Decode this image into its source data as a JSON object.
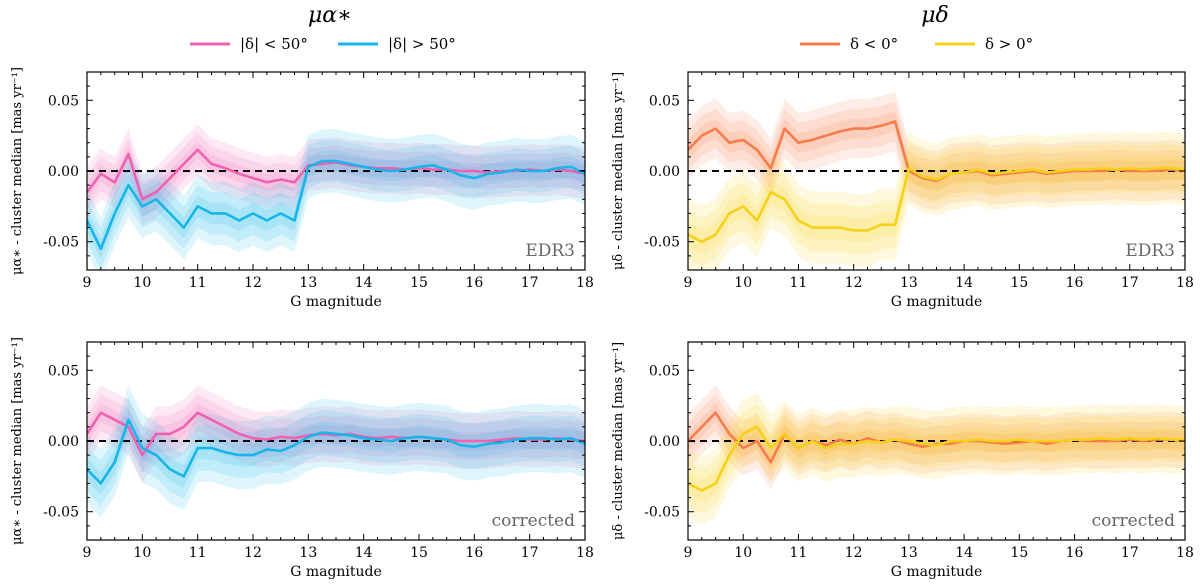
{
  "headers": [
    {
      "title": "μα∗",
      "legend": [
        {
          "label": "|δ| < 50°",
          "color": "#f062b0"
        },
        {
          "label": "|δ| > 50°",
          "color": "#17b5ea"
        }
      ]
    },
    {
      "title": "μδ",
      "legend": [
        {
          "label": "δ < 0°",
          "color": "#f57d4c"
        },
        {
          "label": "δ > 0°",
          "color": "#f7d117"
        }
      ]
    }
  ],
  "chart_data": [
    {
      "type": "line",
      "id": "ra-edr3",
      "tag": "EDR3",
      "xlabel": "G magnitude",
      "ylabel": "μα∗ - cluster median [mas yr⁻¹]",
      "xlim": [
        9,
        18
      ],
      "ylim": [
        -0.07,
        0.07
      ],
      "xticks": [
        9,
        10,
        11,
        12,
        13,
        14,
        15,
        16,
        17,
        18
      ],
      "yticks": [
        0.05,
        0.0,
        -0.05
      ],
      "ytick_labels": [
        "0.05",
        "0.00",
        "-0.05"
      ],
      "reference_line": 0,
      "x": [
        9.0,
        9.25,
        9.5,
        9.75,
        10.0,
        10.25,
        10.5,
        10.75,
        11.0,
        11.25,
        11.5,
        11.75,
        12.0,
        12.25,
        12.5,
        12.75,
        13.0,
        13.25,
        13.5,
        13.75,
        14.0,
        14.25,
        14.5,
        14.75,
        15.0,
        15.25,
        15.5,
        15.75,
        16.0,
        16.25,
        16.5,
        16.75,
        17.0,
        17.25,
        17.5,
        17.75,
        18.0
      ],
      "series": [
        {
          "name": "|δ| < 50°",
          "color": "#f062b0",
          "spread": 0.012,
          "values": [
            -0.015,
            -0.002,
            -0.008,
            0.012,
            -0.02,
            -0.015,
            -0.005,
            0.005,
            0.015,
            0.005,
            0.002,
            -0.002,
            -0.005,
            -0.008,
            -0.006,
            -0.008,
            0.004,
            0.005,
            0.006,
            0.004,
            0.003,
            0.002,
            0.002,
            0.001,
            0.002,
            0.001,
            0.001,
            0.0,
            0.0,
            -0.001,
            0.0,
            0.0,
            0.001,
            0.0,
            0.001,
            0.0,
            -0.002
          ]
        },
        {
          "name": "|δ| > 50°",
          "color": "#17b5ea",
          "spread": 0.015,
          "values": [
            -0.035,
            -0.055,
            -0.03,
            -0.01,
            -0.025,
            -0.02,
            -0.03,
            -0.04,
            -0.025,
            -0.03,
            -0.03,
            -0.035,
            -0.03,
            -0.035,
            -0.03,
            -0.035,
            0.003,
            0.007,
            0.007,
            0.005,
            0.003,
            0.001,
            0.0,
            0.001,
            0.003,
            0.004,
            0.001,
            -0.003,
            -0.005,
            -0.002,
            -0.001,
            0.001,
            0.0,
            0.0,
            0.002,
            0.003,
            -0.002
          ]
        }
      ]
    },
    {
      "type": "line",
      "id": "dec-edr3",
      "tag": "EDR3",
      "xlabel": "G magnitude",
      "ylabel": "μδ - cluster median [mas yr⁻¹]",
      "xlim": [
        9,
        18
      ],
      "ylim": [
        -0.07,
        0.07
      ],
      "xticks": [
        9,
        10,
        11,
        12,
        13,
        14,
        15,
        16,
        17,
        18
      ],
      "yticks": [
        0.05,
        0.0,
        -0.05
      ],
      "ytick_labels": [
        "0.05",
        "0.00",
        "-0.05"
      ],
      "reference_line": 0,
      "x": [
        9.0,
        9.25,
        9.5,
        9.75,
        10.0,
        10.25,
        10.5,
        10.75,
        11.0,
        11.25,
        11.5,
        11.75,
        12.0,
        12.25,
        12.5,
        12.75,
        13.0,
        13.25,
        13.5,
        13.75,
        14.0,
        14.25,
        14.5,
        14.75,
        15.0,
        15.25,
        15.5,
        15.75,
        16.0,
        16.25,
        16.5,
        16.75,
        17.0,
        17.25,
        17.5,
        17.75,
        18.0
      ],
      "series": [
        {
          "name": "δ < 0°",
          "color": "#f57d4c",
          "spread": 0.014,
          "values": [
            0.015,
            0.025,
            0.03,
            0.02,
            0.022,
            0.015,
            0.002,
            0.03,
            0.02,
            0.022,
            0.025,
            0.028,
            0.03,
            0.03,
            0.032,
            0.035,
            0.0,
            -0.005,
            -0.007,
            -0.002,
            -0.001,
            0.0,
            -0.003,
            -0.002,
            -0.001,
            0.0,
            -0.002,
            -0.001,
            0.0,
            0.0,
            0.0,
            0.001,
            0.0,
            0.0,
            0.0,
            0.001,
            0.0
          ]
        },
        {
          "name": "δ > 0°",
          "color": "#f7d117",
          "spread": 0.017,
          "values": [
            -0.045,
            -0.05,
            -0.045,
            -0.03,
            -0.025,
            -0.035,
            -0.015,
            -0.02,
            -0.035,
            -0.04,
            -0.04,
            -0.04,
            -0.042,
            -0.042,
            -0.038,
            -0.038,
            0.002,
            -0.004,
            -0.006,
            -0.002,
            -0.001,
            0.001,
            -0.002,
            -0.001,
            0.0,
            0.001,
            -0.001,
            0.0,
            0.001,
            0.001,
            0.002,
            0.001,
            0.002,
            0.001,
            0.002,
            0.002,
            0.001
          ]
        }
      ]
    },
    {
      "type": "line",
      "id": "ra-corrected",
      "tag": "corrected",
      "xlabel": "G magnitude",
      "ylabel": "μα∗ - cluster median [mas yr⁻¹]",
      "xlim": [
        9,
        18
      ],
      "ylim": [
        -0.07,
        0.07
      ],
      "xticks": [
        9,
        10,
        11,
        12,
        13,
        14,
        15,
        16,
        17,
        18
      ],
      "yticks": [
        0.05,
        0.0,
        -0.05
      ],
      "ytick_labels": [
        "0.05",
        "0.00",
        "-0.05"
      ],
      "reference_line": 0,
      "x": [
        9.0,
        9.25,
        9.5,
        9.75,
        10.0,
        10.25,
        10.5,
        10.75,
        11.0,
        11.25,
        11.5,
        11.75,
        12.0,
        12.25,
        12.5,
        12.75,
        13.0,
        13.25,
        13.5,
        13.75,
        14.0,
        14.25,
        14.5,
        14.75,
        15.0,
        15.25,
        15.5,
        15.75,
        16.0,
        16.25,
        16.5,
        16.75,
        17.0,
        17.25,
        17.5,
        17.75,
        18.0
      ],
      "series": [
        {
          "name": "|δ| < 50°",
          "color": "#f062b0",
          "spread": 0.013,
          "values": [
            0.005,
            0.02,
            0.015,
            0.01,
            -0.01,
            0.005,
            0.005,
            0.01,
            0.02,
            0.015,
            0.01,
            0.005,
            0.002,
            0.001,
            0.003,
            0.002,
            0.004,
            0.005,
            0.004,
            0.005,
            0.003,
            0.002,
            0.003,
            0.002,
            0.003,
            0.002,
            0.001,
            0.0,
            0.0,
            0.0,
            0.001,
            0.002,
            0.001,
            0.001,
            0.002,
            0.001,
            0.0
          ]
        },
        {
          "name": "|δ| > 50°",
          "color": "#17b5ea",
          "spread": 0.016,
          "values": [
            -0.02,
            -0.03,
            -0.015,
            0.015,
            -0.005,
            -0.01,
            -0.02,
            -0.025,
            -0.005,
            -0.005,
            -0.008,
            -0.01,
            -0.01,
            -0.006,
            -0.007,
            -0.003,
            0.003,
            0.006,
            0.005,
            0.004,
            0.002,
            0.001,
            0.0,
            0.002,
            0.003,
            0.002,
            0.001,
            -0.003,
            -0.004,
            -0.002,
            -0.001,
            0.001,
            0.002,
            0.002,
            0.001,
            0.002,
            -0.002
          ]
        }
      ]
    },
    {
      "type": "line",
      "id": "dec-corrected",
      "tag": "corrected",
      "xlabel": "G magnitude",
      "ylabel": "μδ - cluster median [mas yr⁻¹]",
      "xlim": [
        9,
        18
      ],
      "ylim": [
        -0.07,
        0.07
      ],
      "xticks": [
        9,
        10,
        11,
        12,
        13,
        14,
        15,
        16,
        17,
        18
      ],
      "yticks": [
        0.05,
        0.0,
        -0.05
      ],
      "ytick_labels": [
        "0.05",
        "0.00",
        "-0.05"
      ],
      "reference_line": 0,
      "x": [
        9.0,
        9.25,
        9.5,
        9.75,
        10.0,
        10.25,
        10.5,
        10.75,
        11.0,
        11.25,
        11.5,
        11.75,
        12.0,
        12.25,
        12.5,
        12.75,
        13.0,
        13.25,
        13.5,
        13.75,
        14.0,
        14.25,
        14.5,
        14.75,
        15.0,
        15.25,
        15.5,
        15.75,
        16.0,
        16.25,
        16.5,
        16.75,
        17.0,
        17.25,
        17.5,
        17.75,
        18.0
      ],
      "series": [
        {
          "name": "δ < 0°",
          "color": "#f57d4c",
          "spread": 0.013,
          "values": [
            0.0,
            0.01,
            0.02,
            0.005,
            -0.005,
            0.0,
            -0.015,
            0.005,
            -0.005,
            0.0,
            -0.003,
            0.001,
            -0.002,
            0.002,
            -0.001,
            0.001,
            -0.002,
            -0.004,
            -0.002,
            -0.002,
            0.0,
            0.0,
            -0.001,
            -0.002,
            -0.001,
            0.0,
            -0.002,
            0.0,
            0.001,
            0.0,
            0.0,
            0.0,
            0.001,
            0.0,
            0.001,
            0.001,
            0.0
          ]
        },
        {
          "name": "δ > 0°",
          "color": "#f7d117",
          "spread": 0.016,
          "values": [
            -0.03,
            -0.035,
            -0.03,
            -0.01,
            0.005,
            0.01,
            -0.005,
            0.005,
            -0.005,
            0.0,
            -0.005,
            -0.002,
            -0.002,
            0.0,
            -0.001,
            0.001,
            0.0,
            -0.002,
            -0.003,
            0.0,
            0.0,
            0.001,
            0.0,
            0.0,
            0.001,
            0.0,
            0.0,
            0.0,
            0.001,
            0.001,
            0.002,
            0.001,
            0.002,
            0.001,
            0.002,
            0.001,
            0.001
          ]
        }
      ]
    }
  ]
}
